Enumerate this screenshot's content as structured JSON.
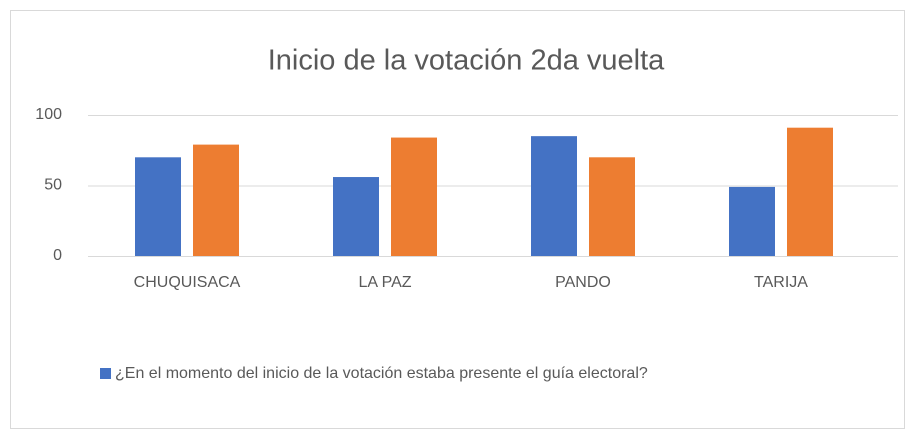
{
  "chart_data": {
    "type": "bar",
    "title": "Inicio de la votación 2da vuelta",
    "categories": [
      "CHUQUISACA",
      "LA PAZ",
      "PANDO",
      "TARIJA"
    ],
    "series": [
      {
        "name": "¿En el momento del inicio de la votación estaba presente el guía electoral?",
        "color": "#4472c4",
        "values": [
          70,
          56,
          85,
          49
        ]
      },
      {
        "color": "#ed7d31",
        "values": [
          79,
          84,
          70,
          91
        ]
      }
    ],
    "ylim": [
      0,
      100
    ],
    "yticks": [
      0,
      50,
      100
    ],
    "grid": true,
    "legend": "bottom"
  }
}
